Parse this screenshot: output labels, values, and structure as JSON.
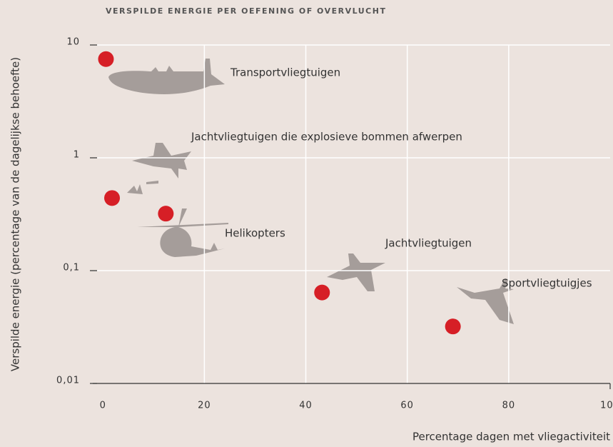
{
  "chart_data": {
    "type": "scatter",
    "title": "VERSPILDE ENERGIE PER OEFENING OF OVERVLUCHT",
    "xlabel": "Percentage dagen met vliegactiviteit",
    "ylabel": "Verspilde energie (percentage van de dagelijkse behoefte)",
    "labels": [
      "Transportvliegtuigen",
      "Jachtvliegtuigen die explosieve bommen afwerpen",
      "Helikopters",
      "Jachtvliegtuigen",
      "Sportvliegtuigjes"
    ],
    "x": [
      0.6,
      1.8,
      12.4,
      43.2,
      69
    ],
    "values": [
      7.5,
      0.44,
      0.32,
      0.064,
      0.032
    ],
    "color": "#d61f26",
    "xlim": [
      -2,
      100
    ],
    "xticks": [
      0,
      20,
      40,
      60,
      80,
      100
    ],
    "ylim": [
      0.01,
      10
    ],
    "yticks": [
      10,
      1,
      {
        "value": 0.1,
        "label": "0,1"
      },
      {
        "value": 0.01,
        "label": "0,01"
      }
    ],
    "log_y": true,
    "grid": true
  }
}
